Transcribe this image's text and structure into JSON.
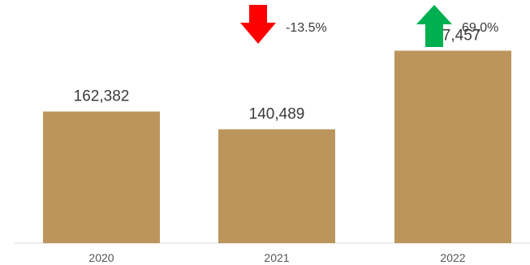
{
  "chart_data": {
    "type": "bar",
    "categories": [
      "2020",
      "2021",
      "2022"
    ],
    "values": [
      162382,
      140489,
      237457
    ],
    "value_labels": [
      "162,382",
      "140,489",
      "237,457"
    ],
    "ylim": [
      0,
      250000
    ],
    "bar_color": "#bc955c",
    "grid": false,
    "annotations": [
      {
        "category": "2021",
        "text": "-13.5%",
        "direction": "down",
        "color": "#ff0000"
      },
      {
        "category": "2022",
        "text": "69.0%",
        "direction": "up",
        "color": "#00b050"
      }
    ]
  }
}
